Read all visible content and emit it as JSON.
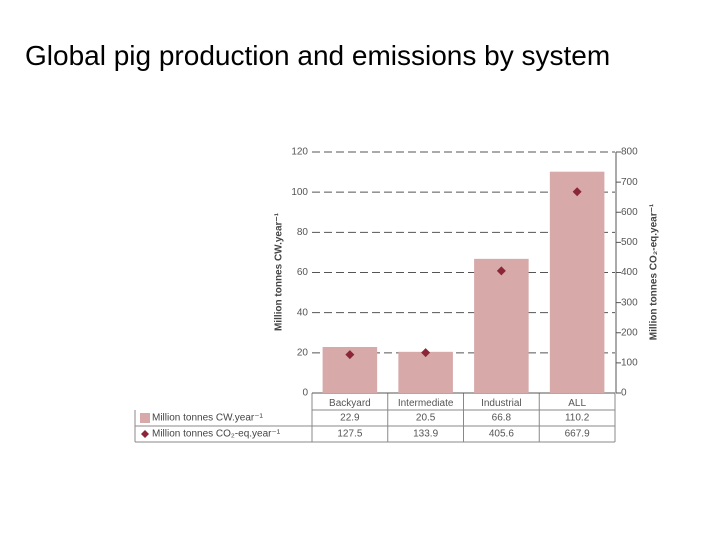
{
  "chart_data": {
    "type": "bar",
    "title": "Global pig production and emissions by system",
    "y_label": "Million tonnes CW.year⁻¹",
    "y2_label": "Million tonnes CO₂-eq.year⁻¹",
    "categories": [
      "Backyard",
      "Intermediate",
      "Industrial",
      "ALL"
    ],
    "series": [
      {
        "name": "Million tonnes CW.year⁻¹",
        "color": "#d7a9a9",
        "values": [
          22.9,
          20.5,
          66.8,
          110.2
        ]
      },
      {
        "name": "Million tonnes CO₂-eq.year⁻¹",
        "color": "#8b2639",
        "axis": "y2",
        "marker": "diamond",
        "values": [
          127.5,
          133.9,
          405.6,
          667.9
        ]
      }
    ],
    "ylim": [
      0,
      120
    ],
    "yticks": [
      0,
      20,
      40,
      60,
      80,
      100,
      120
    ],
    "y2lim": [
      0,
      800
    ],
    "y2ticks": [
      0,
      100,
      200,
      300,
      400,
      500,
      600,
      700,
      800
    ],
    "grid": true
  }
}
